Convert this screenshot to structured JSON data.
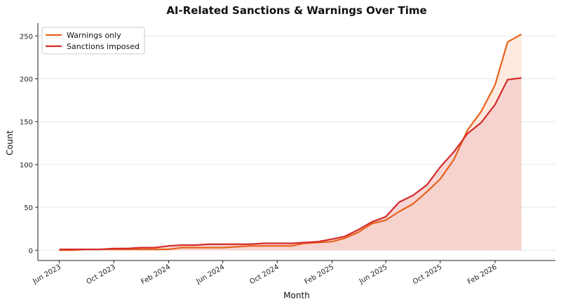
{
  "chart_data": {
    "type": "line",
    "title": "AI-Related Sanctions & Warnings Over Time",
    "xlabel": "Month",
    "ylabel": "Count",
    "ylim": [
      -12,
      265
    ],
    "yticks": [
      0,
      50,
      100,
      150,
      200,
      250
    ],
    "xlim": [
      "2023-04-14",
      "2026-06-16"
    ],
    "xticks": [
      {
        "date": "2023-06-01",
        "label": "Jun 2023"
      },
      {
        "date": "2023-10-01",
        "label": "Oct 2023"
      },
      {
        "date": "2024-02-01",
        "label": "Feb 2024"
      },
      {
        "date": "2024-06-01",
        "label": "Jun 2024"
      },
      {
        "date": "2024-10-01",
        "label": "Oct 2024"
      },
      {
        "date": "2025-02-01",
        "label": "Feb 2025"
      },
      {
        "date": "2025-06-01",
        "label": "Jun 2025"
      },
      {
        "date": "2025-10-01",
        "label": "Oct 2025"
      },
      {
        "date": "2026-02-01",
        "label": "Feb 2026"
      }
    ],
    "grid": "horizontal",
    "legend_position": "top-left",
    "x": [
      "2023-06-01",
      "2023-07-01",
      "2023-08-01",
      "2023-09-01",
      "2023-10-01",
      "2023-11-01",
      "2023-12-01",
      "2024-01-01",
      "2024-02-01",
      "2024-03-01",
      "2024-04-01",
      "2024-05-01",
      "2024-06-01",
      "2024-07-01",
      "2024-08-01",
      "2024-09-01",
      "2024-10-01",
      "2024-11-01",
      "2024-12-01",
      "2025-01-01",
      "2025-02-01",
      "2025-03-01",
      "2025-04-01",
      "2025-05-01",
      "2025-06-01",
      "2025-07-01",
      "2025-08-01",
      "2025-09-01",
      "2025-10-01",
      "2025-11-01",
      "2025-12-01",
      "2026-01-01",
      "2026-02-01",
      "2026-03-01",
      "2026-04-01"
    ],
    "series": [
      {
        "name": "Warnings only",
        "color": "#e8611a",
        "fill": "#fde3d4",
        "values": [
          0,
          0,
          1,
          1,
          1,
          1,
          1,
          1,
          1,
          3,
          3,
          3,
          3,
          4,
          5,
          5,
          5,
          5,
          8,
          9,
          10,
          14,
          21,
          31,
          35,
          45,
          54,
          68,
          83,
          106,
          140,
          162,
          193,
          243,
          252
        ]
      },
      {
        "name": "Sanctions imposed",
        "color": "#d42a2a",
        "fill": "#f5cfcc",
        "values": [
          1,
          1,
          1,
          1,
          2,
          2,
          3,
          3,
          5,
          6,
          6,
          7,
          7,
          7,
          7,
          8,
          8,
          8,
          9,
          10,
          13,
          16,
          24,
          33,
          39,
          56,
          64,
          76,
          97,
          115,
          136,
          149,
          170,
          199,
          201
        ]
      }
    ]
  }
}
